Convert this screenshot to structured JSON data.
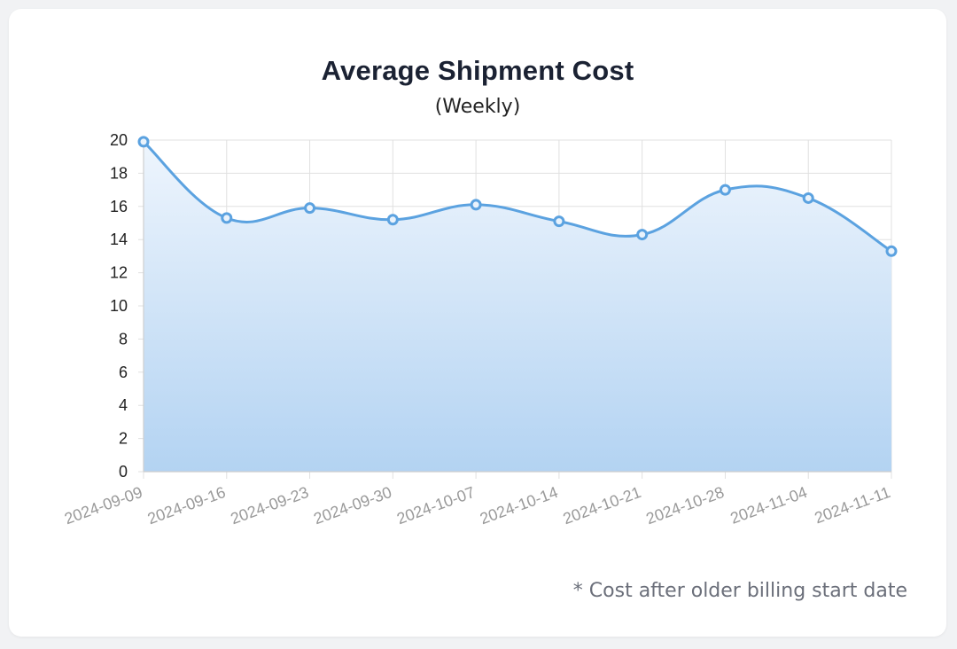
{
  "chart_data": {
    "type": "area",
    "title": "Average Shipment Cost",
    "subtitle": "(Weekly)",
    "x": [
      "2024-09-09",
      "2024-09-16",
      "2024-09-23",
      "2024-09-30",
      "2024-10-07",
      "2024-10-14",
      "2024-10-21",
      "2024-10-28",
      "2024-11-04",
      "2024-11-11"
    ],
    "y_ticks": [
      0,
      2,
      4,
      6,
      8,
      10,
      12,
      14,
      16,
      18,
      20
    ],
    "ylim": [
      0,
      20
    ],
    "grid": true,
    "legend": "none",
    "series": [
      {
        "values": [
          19.9,
          15.3,
          15.9,
          15.2,
          16.1,
          15.1,
          14.3,
          17.0,
          16.5,
          13.3
        ]
      }
    ],
    "colors": {
      "line": "#5ba2e0",
      "fill_top": "#eef5fd",
      "fill_bottom": "#b3d3f2",
      "grid": "#e0e0e0"
    },
    "footnote": "* Cost after older billing start date"
  }
}
